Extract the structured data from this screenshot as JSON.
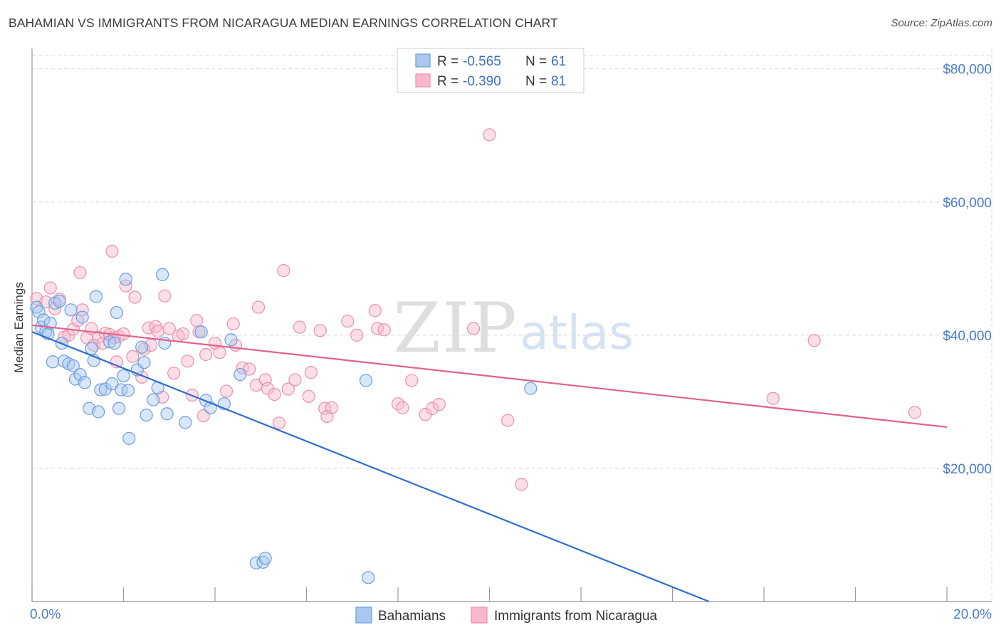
{
  "header": {
    "title": "BAHAMIAN VS IMMIGRANTS FROM NICARAGUA MEDIAN EARNINGS CORRELATION CHART",
    "source": "Source: ZipAtlas.com"
  },
  "watermark": {
    "zip": "ZIP",
    "atlas": "atlas"
  },
  "legend": {
    "r_label": "R =",
    "n_label": "N =",
    "rows": [
      {
        "r": "-0.565",
        "n": "61"
      },
      {
        "r": "-0.390",
        "n": "81"
      }
    ]
  },
  "colors": {
    "blue_fill": "#a9c8f0",
    "blue_stroke": "#6a9ee0",
    "blue_line": "#2f6fd0",
    "pink_fill": "#f7b8cc",
    "pink_stroke": "#ec8fae",
    "pink_line": "#e0628e",
    "grid": "#d8d8d8"
  },
  "chart_data": {
    "type": "scatter",
    "xlabel": "",
    "ylabel": "Median Earnings",
    "xlim": [
      0,
      20
    ],
    "ylim": [
      0,
      82000
    ],
    "x_tick_labels": [
      "0.0%",
      "20.0%"
    ],
    "y_ticks": [
      20000,
      40000,
      60000,
      80000
    ],
    "y_tick_labels": [
      "$20,000",
      "$40,000",
      "$60,000",
      "$80,000"
    ],
    "grid": true,
    "legend_position": "top-center",
    "series": [
      {
        "name": "Bahamians",
        "regression": {
          "x0": 0.0,
          "y0": 40500,
          "x1": 14.8,
          "y1": 0
        },
        "points": [
          [
            0.1,
            44200
          ],
          [
            0.15,
            43500
          ],
          [
            0.2,
            41200
          ],
          [
            0.25,
            42300
          ],
          [
            0.3,
            40500
          ],
          [
            0.35,
            40200
          ],
          [
            0.4,
            41800
          ],
          [
            0.45,
            36000
          ],
          [
            0.5,
            44800
          ],
          [
            0.6,
            45100
          ],
          [
            0.65,
            38800
          ],
          [
            0.7,
            36100
          ],
          [
            0.8,
            35700
          ],
          [
            0.85,
            43800
          ],
          [
            0.9,
            35400
          ],
          [
            0.95,
            33400
          ],
          [
            1.05,
            34100
          ],
          [
            1.1,
            42700
          ],
          [
            1.15,
            32900
          ],
          [
            1.25,
            29000
          ],
          [
            1.3,
            38000
          ],
          [
            1.35,
            36200
          ],
          [
            1.4,
            45800
          ],
          [
            1.45,
            28500
          ],
          [
            1.5,
            31800
          ],
          [
            1.6,
            31900
          ],
          [
            1.7,
            39000
          ],
          [
            1.75,
            32700
          ],
          [
            1.8,
            38800
          ],
          [
            1.85,
            43400
          ],
          [
            1.9,
            29000
          ],
          [
            1.95,
            31800
          ],
          [
            2.0,
            33900
          ],
          [
            2.05,
            48400
          ],
          [
            2.1,
            31700
          ],
          [
            2.12,
            24500
          ],
          [
            2.3,
            34800
          ],
          [
            2.4,
            38200
          ],
          [
            2.45,
            35900
          ],
          [
            2.5,
            28000
          ],
          [
            2.65,
            30300
          ],
          [
            2.75,
            32100
          ],
          [
            2.85,
            49100
          ],
          [
            2.9,
            38800
          ],
          [
            2.95,
            28200
          ],
          [
            3.35,
            26900
          ],
          [
            3.7,
            40500
          ],
          [
            3.8,
            30200
          ],
          [
            3.9,
            29100
          ],
          [
            4.2,
            29700
          ],
          [
            4.35,
            39300
          ],
          [
            4.55,
            34100
          ],
          [
            4.9,
            5800
          ],
          [
            5.05,
            5900
          ],
          [
            5.1,
            6500
          ],
          [
            7.3,
            33200
          ],
          [
            7.35,
            3600
          ],
          [
            10.9,
            32000
          ]
        ]
      },
      {
        "name": "Immigrants from Nicaragua",
        "regression": {
          "x0": 0.0,
          "y0": 41500,
          "x1": 20.0,
          "y1": 26200
        },
        "points": [
          [
            0.1,
            45500
          ],
          [
            0.3,
            45000
          ],
          [
            0.4,
            47100
          ],
          [
            0.5,
            44000
          ],
          [
            0.6,
            45400
          ],
          [
            0.7,
            39700
          ],
          [
            0.8,
            40000
          ],
          [
            0.9,
            40900
          ],
          [
            1.0,
            42200
          ],
          [
            1.05,
            49400
          ],
          [
            1.1,
            43800
          ],
          [
            1.2,
            39600
          ],
          [
            1.3,
            41000
          ],
          [
            1.35,
            38500
          ],
          [
            1.45,
            39700
          ],
          [
            1.55,
            38800
          ],
          [
            1.6,
            40300
          ],
          [
            1.7,
            40100
          ],
          [
            1.75,
            52600
          ],
          [
            1.8,
            39600
          ],
          [
            1.85,
            36000
          ],
          [
            1.9,
            39800
          ],
          [
            2.0,
            40200
          ],
          [
            2.05,
            47400
          ],
          [
            2.2,
            36800
          ],
          [
            2.25,
            45700
          ],
          [
            2.4,
            33700
          ],
          [
            2.45,
            37900
          ],
          [
            2.55,
            41100
          ],
          [
            2.6,
            38500
          ],
          [
            2.7,
            41300
          ],
          [
            2.75,
            40600
          ],
          [
            2.85,
            30700
          ],
          [
            2.9,
            45900
          ],
          [
            3.0,
            41000
          ],
          [
            3.1,
            34300
          ],
          [
            3.2,
            39900
          ],
          [
            3.3,
            40200
          ],
          [
            3.4,
            36100
          ],
          [
            3.5,
            31000
          ],
          [
            3.6,
            42200
          ],
          [
            3.65,
            40500
          ],
          [
            3.75,
            27900
          ],
          [
            3.8,
            37100
          ],
          [
            4.0,
            38800
          ],
          [
            4.1,
            37400
          ],
          [
            4.25,
            31600
          ],
          [
            4.4,
            41700
          ],
          [
            4.45,
            38500
          ],
          [
            4.6,
            35100
          ],
          [
            4.75,
            34900
          ],
          [
            4.9,
            32500
          ],
          [
            4.95,
            44200
          ],
          [
            5.1,
            33300
          ],
          [
            5.15,
            32000
          ],
          [
            5.3,
            31100
          ],
          [
            5.4,
            26800
          ],
          [
            5.5,
            49700
          ],
          [
            5.6,
            31900
          ],
          [
            5.75,
            33300
          ],
          [
            5.85,
            41200
          ],
          [
            6.05,
            30800
          ],
          [
            6.1,
            34400
          ],
          [
            6.3,
            40700
          ],
          [
            6.4,
            29000
          ],
          [
            6.45,
            27800
          ],
          [
            6.55,
            29100
          ],
          [
            6.9,
            42100
          ],
          [
            7.1,
            40000
          ],
          [
            7.5,
            43700
          ],
          [
            7.55,
            41000
          ],
          [
            7.7,
            40800
          ],
          [
            8.0,
            29700
          ],
          [
            8.1,
            29100
          ],
          [
            8.3,
            33200
          ],
          [
            8.6,
            28100
          ],
          [
            8.75,
            29000
          ],
          [
            8.9,
            29600
          ],
          [
            9.65,
            41000
          ],
          [
            10.0,
            70100
          ],
          [
            10.4,
            27200
          ],
          [
            10.7,
            17600
          ],
          [
            16.2,
            30500
          ],
          [
            17.1,
            39200
          ],
          [
            19.3,
            28400
          ]
        ]
      }
    ]
  }
}
